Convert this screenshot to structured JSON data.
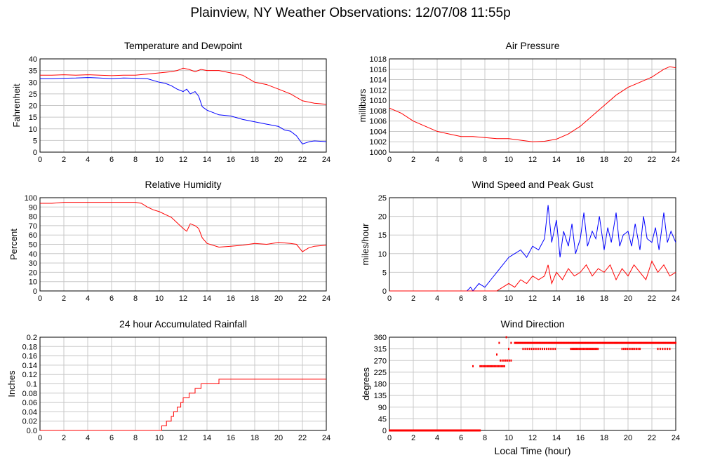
{
  "page": {
    "title": "Plainview, NY Weather Observations: 12/07/08 11:55p"
  },
  "colors": {
    "red": "#ff0000",
    "blue": "#0000ff",
    "grid": "#c8c8c8",
    "frame": "#000000"
  },
  "chart_data": [
    {
      "id": "temp",
      "type": "line",
      "title": "Temperature and Dewpoint",
      "xlabel": "",
      "ylabel": "Fahrenheit",
      "xlim": [
        0,
        24
      ],
      "ylim": [
        0,
        40
      ],
      "xticks": [
        0,
        2,
        4,
        6,
        8,
        10,
        12,
        14,
        16,
        18,
        20,
        22,
        24
      ],
      "yticks": [
        0,
        5,
        10,
        15,
        20,
        25,
        30,
        35,
        40
      ],
      "grid": true,
      "series": [
        {
          "color": "#ff0000",
          "x": [
            0,
            1,
            2,
            3,
            4,
            5,
            6,
            7,
            8,
            9,
            10,
            11,
            11.5,
            12,
            12.5,
            13,
            13.5,
            14,
            15,
            16,
            17,
            18,
            19,
            20,
            21,
            22,
            23,
            24
          ],
          "y": [
            33,
            33,
            33.2,
            33,
            33.2,
            33,
            32.8,
            33,
            33,
            33.5,
            34,
            34.5,
            35,
            36,
            35.5,
            34.5,
            35.5,
            35,
            35,
            34,
            33,
            30,
            29,
            27,
            25,
            22,
            21,
            20.5
          ]
        },
        {
          "color": "#0000ff",
          "x": [
            0,
            1,
            2,
            3,
            4,
            5,
            6,
            7,
            8,
            9,
            10,
            10.5,
            11,
            11.5,
            12,
            12.3,
            12.6,
            13,
            13.3,
            13.6,
            14,
            15,
            16,
            17,
            18,
            19,
            20,
            20.5,
            21,
            21.5,
            22,
            22.3,
            22.6,
            23,
            24
          ],
          "y": [
            31.5,
            31.5,
            31.7,
            31.8,
            32,
            31.8,
            31.5,
            31.8,
            31.7,
            31.5,
            30,
            29.5,
            28.5,
            27,
            26,
            27,
            25,
            26,
            24,
            19.5,
            18,
            16,
            15.5,
            14,
            13,
            12,
            11,
            9.5,
            9,
            7,
            3.5,
            4,
            4.5,
            4.8,
            4.5
          ]
        }
      ]
    },
    {
      "id": "pressure",
      "type": "line",
      "title": "Air Pressure",
      "xlabel": "",
      "ylabel": "millibars",
      "xlim": [
        0,
        24
      ],
      "ylim": [
        1000,
        1018
      ],
      "xticks": [
        0,
        2,
        4,
        6,
        8,
        10,
        12,
        14,
        16,
        18,
        20,
        22,
        24
      ],
      "yticks": [
        1000,
        1002,
        1004,
        1006,
        1008,
        1010,
        1012,
        1014,
        1016,
        1018
      ],
      "grid": true,
      "series": [
        {
          "color": "#ff0000",
          "x": [
            0,
            1,
            2,
            3,
            4,
            5,
            6,
            7,
            8,
            9,
            10,
            11,
            12,
            13,
            14,
            15,
            16,
            17,
            18,
            19,
            20,
            21,
            22,
            23,
            23.5,
            24
          ],
          "y": [
            1008.5,
            1007.5,
            1006,
            1005,
            1004,
            1003.5,
            1003,
            1003,
            1002.8,
            1002.6,
            1002.6,
            1002.3,
            1002,
            1002.1,
            1002.5,
            1003.5,
            1005,
            1007,
            1009,
            1011,
            1012.5,
            1013.5,
            1014.5,
            1016,
            1016.5,
            1016.3
          ]
        }
      ]
    },
    {
      "id": "humidity",
      "type": "line",
      "title": "Relative Humidity",
      "xlabel": "",
      "ylabel": "Percent",
      "xlim": [
        0,
        24
      ],
      "ylim": [
        0,
        100
      ],
      "xticks": [
        0,
        2,
        4,
        6,
        8,
        10,
        12,
        14,
        16,
        18,
        20,
        22,
        24
      ],
      "yticks": [
        0,
        10,
        20,
        30,
        40,
        50,
        60,
        70,
        80,
        90,
        100
      ],
      "grid": true,
      "series": [
        {
          "color": "#ff0000",
          "x": [
            0,
            1,
            2,
            3,
            4,
            5,
            6,
            7,
            8,
            8.5,
            9,
            9.5,
            10,
            10.5,
            11,
            11.5,
            12,
            12.3,
            12.6,
            13,
            13.3,
            13.6,
            14,
            15,
            16,
            17,
            18,
            19,
            20,
            21,
            21.5,
            22,
            22.5,
            23,
            24
          ],
          "y": [
            94,
            94,
            95,
            95,
            95,
            95,
            95,
            95,
            95,
            94,
            90,
            87,
            85,
            82,
            79,
            73,
            67,
            64,
            72,
            70,
            67,
            57,
            51,
            47,
            48,
            49,
            51,
            50,
            52,
            51,
            50,
            42,
            46,
            48,
            49
          ]
        }
      ]
    },
    {
      "id": "wind",
      "type": "line",
      "title": "Wind Speed and Peak Gust",
      "xlabel": "",
      "ylabel": "miles/hour",
      "xlim": [
        0,
        24
      ],
      "ylim": [
        0,
        25
      ],
      "xticks": [
        0,
        2,
        4,
        6,
        8,
        10,
        12,
        14,
        16,
        18,
        20,
        22,
        24
      ],
      "yticks": [
        0,
        5,
        10,
        15,
        20,
        25
      ],
      "grid": true,
      "series": [
        {
          "color": "#0000ff",
          "x": [
            0,
            6.5,
            6.8,
            7,
            7.5,
            8,
            8.5,
            9,
            9.5,
            10,
            10.5,
            11,
            11.5,
            12,
            12.5,
            13,
            13.3,
            13.6,
            14,
            14.3,
            14.6,
            15,
            15.3,
            15.6,
            16,
            16.3,
            16.6,
            17,
            17.3,
            17.6,
            18,
            18.3,
            18.6,
            19,
            19.3,
            19.6,
            20,
            20.3,
            20.6,
            21,
            21.3,
            21.6,
            22,
            22.3,
            22.6,
            23,
            23.3,
            23.6,
            24
          ],
          "y": [
            0,
            0,
            1,
            0,
            2,
            1,
            3,
            5,
            7,
            9,
            10,
            11,
            9,
            12,
            11,
            14,
            23,
            13,
            19,
            9,
            16,
            12,
            18,
            10,
            14,
            21,
            12,
            16,
            14,
            20,
            11,
            17,
            13,
            21,
            12,
            15,
            16,
            12,
            18,
            11,
            20,
            14,
            13,
            17,
            11,
            21,
            13,
            16,
            13
          ]
        },
        {
          "color": "#ff0000",
          "x": [
            0,
            9,
            9.5,
            10,
            10.5,
            11,
            11.5,
            12,
            12.5,
            13,
            13.3,
            13.6,
            14,
            14.5,
            15,
            15.5,
            16,
            16.5,
            17,
            17.5,
            18,
            18.5,
            19,
            19.5,
            20,
            20.5,
            21,
            21.5,
            22,
            22.5,
            23,
            23.5,
            24
          ],
          "y": [
            0,
            0,
            1,
            2,
            1,
            3,
            2,
            4,
            3,
            4,
            7,
            2,
            5,
            3,
            6,
            4,
            5,
            7,
            4,
            6,
            5,
            7,
            3,
            6,
            4,
            7,
            5,
            3,
            8,
            5,
            7,
            4,
            5
          ]
        }
      ]
    },
    {
      "id": "rain",
      "type": "line",
      "title": "24 hour Accumulated Rainfall",
      "xlabel": "",
      "ylabel": "Inches",
      "xlim": [
        0,
        24
      ],
      "ylim": [
        0,
        0.2
      ],
      "xticks": [
        0,
        2,
        4,
        6,
        8,
        10,
        12,
        14,
        16,
        18,
        20,
        22,
        24
      ],
      "yticks": [
        0.0,
        0.02,
        0.04,
        0.06,
        0.08,
        0.1,
        0.12,
        0.14,
        0.16,
        0.18,
        0.2
      ],
      "step": true,
      "grid": true,
      "series": [
        {
          "color": "#ff0000",
          "x": [
            0,
            10.2,
            10.6,
            11,
            11.2,
            11.5,
            11.8,
            12,
            12.5,
            13,
            13.5,
            14,
            15,
            24
          ],
          "y": [
            0,
            0.01,
            0.02,
            0.03,
            0.04,
            0.05,
            0.06,
            0.07,
            0.08,
            0.09,
            0.1,
            0.1,
            0.11,
            0.11
          ]
        }
      ]
    },
    {
      "id": "direction",
      "type": "scatter",
      "title": "Wind Direction",
      "xlabel": "Local Time (hour)",
      "ylabel": "degrees",
      "xlim": [
        0,
        24
      ],
      "ylim": [
        0,
        360
      ],
      "xticks": [
        0,
        2,
        4,
        6,
        8,
        10,
        12,
        14,
        16,
        18,
        20,
        22,
        24
      ],
      "yticks": [
        0,
        45,
        90,
        135,
        180,
        225,
        270,
        315,
        360
      ],
      "grid": true,
      "segments": [
        {
          "y": 0,
          "x0": 0,
          "x1": 7.6,
          "step": 0.08
        },
        {
          "y": 248,
          "x0": 7.6,
          "x1": 9.7,
          "step": 0.12
        },
        {
          "y": 270,
          "x0": 9.3,
          "x1": 10.3,
          "step": 0.15
        },
        {
          "y": 338,
          "x0": 10.5,
          "x1": 24,
          "step": 0.1
        },
        {
          "y": 315,
          "x0": 11.2,
          "x1": 14.0,
          "step": 0.18
        },
        {
          "y": 315,
          "x0": 15.2,
          "x1": 17.5,
          "step": 0.12
        },
        {
          "y": 315,
          "x0": 19.5,
          "x1": 21.0,
          "step": 0.15
        },
        {
          "y": 315,
          "x0": 22.5,
          "x1": 23.5,
          "step": 0.2
        }
      ],
      "points": [
        {
          "x": 7.0,
          "y": 248
        },
        {
          "x": 9.0,
          "y": 293
        },
        {
          "x": 9.2,
          "y": 338
        },
        {
          "x": 9.8,
          "y": 360
        },
        {
          "x": 10.0,
          "y": 315
        },
        {
          "x": 10.2,
          "y": 338
        }
      ]
    }
  ]
}
